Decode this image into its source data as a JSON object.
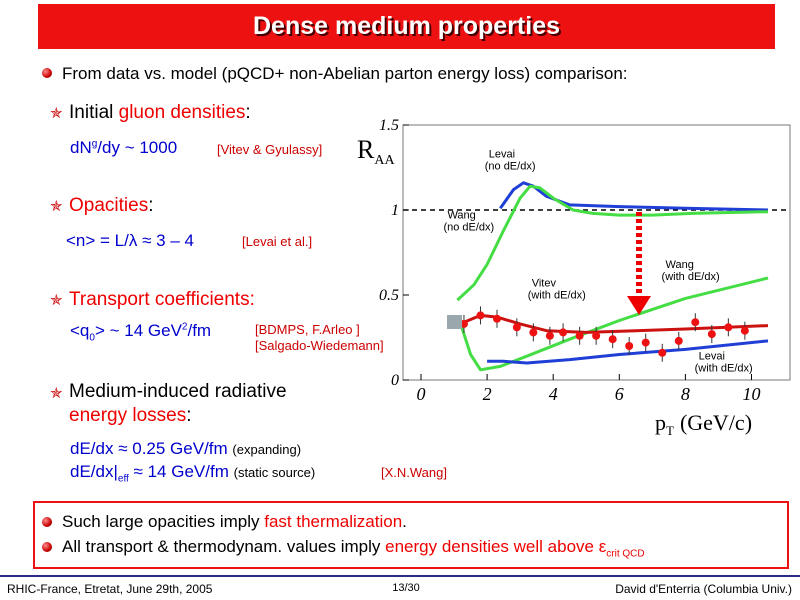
{
  "title": "Dense medium properties",
  "intro": "From data vs. model (pQCD+ non-Abelian parton energy loss) comparison:",
  "items": {
    "gluon": {
      "prefix": "Initial ",
      "highlight": "gluon densities",
      "suffix": ":",
      "formula_a": "dN",
      "formula_sup": "g",
      "formula_b": "/dy ~ 1000",
      "ref": "[Vitev & Gyulassy]"
    },
    "opacity": {
      "highlight": "Opacities",
      "suffix": ":",
      "formula": "<n> = L/λ  ≈ 3 – 4",
      "ref": "[Levai et al.]"
    },
    "transport": {
      "highlight": "Transport coefficients:",
      "formula_a": "<q",
      "formula_sub": "0",
      "formula_b": "> ~ 14 GeV",
      "formula_sup": "2",
      "formula_c": "/fm",
      "ref1": "[BDMPS, F.Arleo ]",
      "ref2": "[Salgado-Wiedemann]"
    },
    "energy_loss": {
      "line1": "Medium-induced radiative",
      "highlight": "energy losses",
      "suffix": ":",
      "f1": "dE/dx ≈ 0.25 GeV/fm",
      "f1_note": "(expanding)",
      "f2_a": "dE/dx|",
      "f2_sub": "eff",
      "f2_b": " ≈ 14 GeV/fm",
      "f2_note": "(static source)",
      "ref": "[X.N.Wang]"
    }
  },
  "bottom": {
    "line1_a": "Such large opacities imply ",
    "line1_hl": "fast thermalization",
    "line1_b": ".",
    "line2_a": "All transport & thermodynam. values imply ",
    "line2_hl": "energy densities well above ε",
    "line2_sub": "crit QCD"
  },
  "footer": {
    "left": "RHIC-France, Etretat, June 29th, 2005",
    "center": "13/30",
    "right": "David d'Enterria (Columbia Univ.)"
  },
  "chart_data": {
    "type": "line",
    "ylabel_main": "R",
    "ylabel_sub": "AA",
    "xlabel_main": "p",
    "xlabel_sub": "T",
    "xlabel_unit": "(GeV/c)",
    "xlim": [
      0,
      10.5
    ],
    "ylim": [
      0,
      1.5
    ],
    "xticks": [
      "0",
      "2",
      "4",
      "6",
      "8",
      "10"
    ],
    "yticks": [
      "0",
      "0.5",
      "1",
      "1.5"
    ],
    "reference_line": 1,
    "annotations": [
      {
        "text1": "Levai",
        "text2": "(no dE/dx)",
        "x": 2.05,
        "y": 1.31
      },
      {
        "text1": "Wang",
        "text2": "(no dE/dx)",
        "x": 0.8,
        "y": 0.95
      },
      {
        "text1": "Wang",
        "text2": "(with dE/dx)",
        "x": 7.4,
        "y": 0.66
      },
      {
        "text1": "Vitev",
        "text2": "(with dE/dx)",
        "x": 3.35,
        "y": 0.55
      },
      {
        "text1": "Levai",
        "text2": "(with dE/dx)",
        "x": 8.4,
        "y": 0.12
      }
    ],
    "series": [
      {
        "color": "#1f3fd6",
        "x": [
          2.4,
          2.8,
          3.1,
          3.4,
          3.8,
          4.5,
          6,
          8,
          10.5
        ],
        "y": [
          1.01,
          1.12,
          1.16,
          1.14,
          1.08,
          1.03,
          1.02,
          1.01,
          1.0
        ]
      },
      {
        "color": "#44dd44",
        "x": [
          1.1,
          1.6,
          2.0,
          2.5,
          3.0,
          3.3,
          3.6,
          4.0,
          4.6,
          5.2,
          6,
          7,
          8.2,
          10.5
        ],
        "y": [
          0.47,
          0.56,
          0.68,
          0.88,
          1.07,
          1.14,
          1.13,
          1.07,
          1.0,
          0.98,
          0.97,
          0.97,
          0.98,
          0.99
        ]
      },
      {
        "color": "#44dd44",
        "x": [
          1.2,
          1.5,
          1.8,
          2.4,
          3.2,
          4.5,
          6,
          8,
          10.5
        ],
        "y": [
          0.33,
          0.15,
          0.06,
          0.08,
          0.14,
          0.24,
          0.35,
          0.48,
          0.6
        ]
      },
      {
        "color": "#cc1111",
        "x": [
          1.3,
          1.8,
          2.3,
          3.0,
          3.8,
          5.0,
          6.5,
          8,
          10.5
        ],
        "y": [
          0.34,
          0.38,
          0.37,
          0.33,
          0.29,
          0.28,
          0.29,
          0.3,
          0.32
        ]
      },
      {
        "color": "#1f3fd6",
        "x": [
          2.0,
          2.5,
          3.2,
          4.5,
          6,
          8,
          10.5
        ],
        "y": [
          0.11,
          0.11,
          0.1,
          0.12,
          0.15,
          0.18,
          0.23
        ]
      }
    ],
    "data_points": {
      "x": [
        1.3,
        1.8,
        2.3,
        2.9,
        3.4,
        3.9,
        4.3,
        4.8,
        5.3,
        5.8,
        6.3,
        6.8,
        7.3,
        7.8,
        8.3,
        8.8,
        9.3,
        9.8
      ],
      "y": [
        0.33,
        0.38,
        0.36,
        0.31,
        0.28,
        0.26,
        0.28,
        0.26,
        0.26,
        0.24,
        0.2,
        0.22,
        0.16,
        0.23,
        0.34,
        0.27,
        0.31,
        0.29
      ]
    }
  }
}
